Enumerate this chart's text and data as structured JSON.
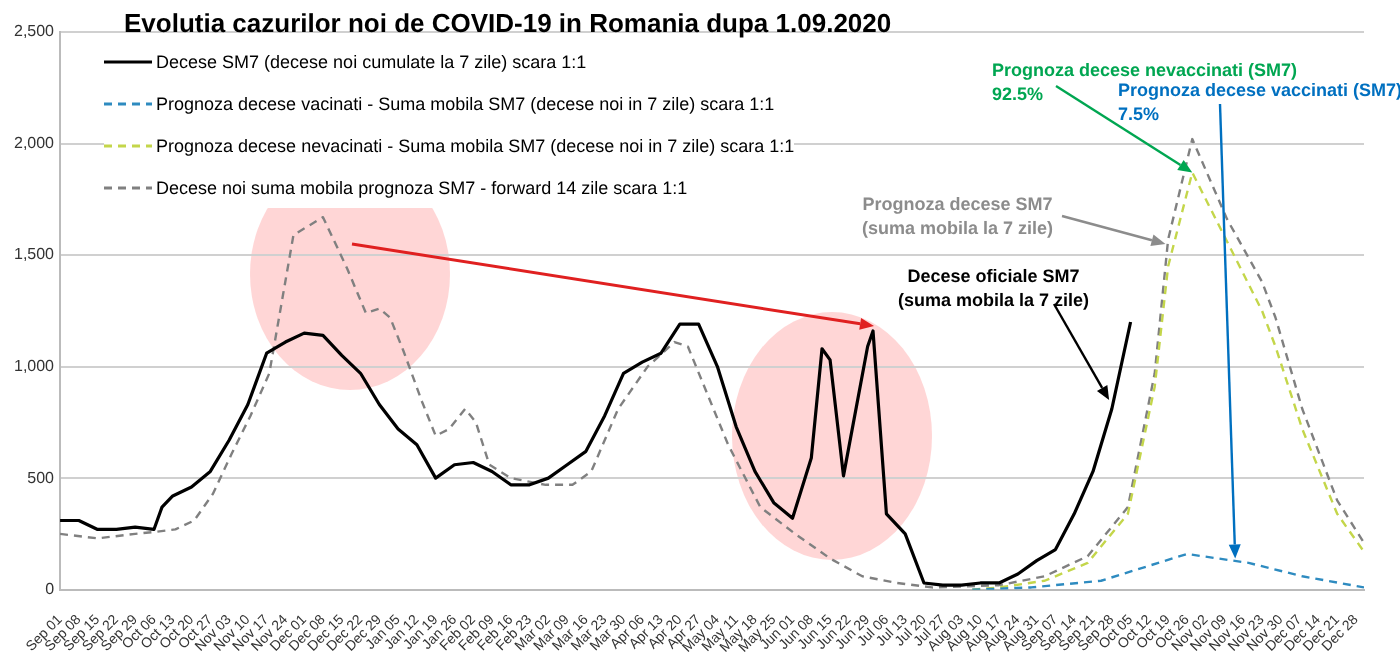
{
  "chart_data": {
    "type": "line",
    "title": "Evolutia cazurilor noi de COVID-19 in Romania dupa 1.09.2020",
    "legend": "top left",
    "grid": "y",
    "xlim": [
      "2020-09-01",
      "2021-12-31"
    ],
    "ylim": [
      0,
      2500
    ],
    "yticks": [
      {
        "value": 0,
        "label": "0"
      },
      {
        "value": 500,
        "label": "500"
      },
      {
        "value": 1000,
        "label": "1,000"
      },
      {
        "value": 1500,
        "label": "1,500"
      },
      {
        "value": 2000,
        "label": "2,000"
      },
      {
        "value": 2500,
        "label": "2,500"
      }
    ],
    "xticks": [
      {
        "value": "2020-09-01",
        "label": "Sep 01"
      },
      {
        "value": "2020-09-08",
        "label": "Sep 08"
      },
      {
        "value": "2020-09-15",
        "label": "Sep 15"
      },
      {
        "value": "2020-09-22",
        "label": "Sep 22"
      },
      {
        "value": "2020-09-29",
        "label": "Sep 29"
      },
      {
        "value": "2020-10-06",
        "label": "Oct 06"
      },
      {
        "value": "2020-10-13",
        "label": "Oct 13"
      },
      {
        "value": "2020-10-20",
        "label": "Oct 20"
      },
      {
        "value": "2020-10-27",
        "label": "Oct 27"
      },
      {
        "value": "2020-11-03",
        "label": "Nov 03"
      },
      {
        "value": "2020-11-10",
        "label": "Nov 10"
      },
      {
        "value": "2020-11-17",
        "label": "Nov 17"
      },
      {
        "value": "2020-11-24",
        "label": "Nov 24"
      },
      {
        "value": "2020-12-01",
        "label": "Dec 01"
      },
      {
        "value": "2020-12-08",
        "label": "Dec 08"
      },
      {
        "value": "2020-12-15",
        "label": "Dec 15"
      },
      {
        "value": "2020-12-22",
        "label": "Dec 22"
      },
      {
        "value": "2020-12-29",
        "label": "Dec 29"
      },
      {
        "value": "2021-01-05",
        "label": "Jan 05"
      },
      {
        "value": "2021-01-12",
        "label": "Jan 12"
      },
      {
        "value": "2021-01-19",
        "label": "Jan 19"
      },
      {
        "value": "2021-01-26",
        "label": "Jan 26"
      },
      {
        "value": "2021-02-02",
        "label": "Feb 02"
      },
      {
        "value": "2021-02-09",
        "label": "Feb 09"
      },
      {
        "value": "2021-02-16",
        "label": "Feb 16"
      },
      {
        "value": "2021-02-23",
        "label": "Feb 23"
      },
      {
        "value": "2021-03-02",
        "label": "Mar 02"
      },
      {
        "value": "2021-03-09",
        "label": "Mar 09"
      },
      {
        "value": "2021-03-16",
        "label": "Mar 16"
      },
      {
        "value": "2021-03-23",
        "label": "Mar 23"
      },
      {
        "value": "2021-03-30",
        "label": "Mar 30"
      },
      {
        "value": "2021-04-06",
        "label": "Apr 06"
      },
      {
        "value": "2021-04-13",
        "label": "Apr 13"
      },
      {
        "value": "2021-04-20",
        "label": "Apr 20"
      },
      {
        "value": "2021-04-27",
        "label": "Apr 27"
      },
      {
        "value": "2021-05-04",
        "label": "May 04"
      },
      {
        "value": "2021-05-11",
        "label": "May 11"
      },
      {
        "value": "2021-05-18",
        "label": "May 18"
      },
      {
        "value": "2021-05-25",
        "label": "May 25"
      },
      {
        "value": "2021-06-01",
        "label": "Jun 01"
      },
      {
        "value": "2021-06-08",
        "label": "Jun 08"
      },
      {
        "value": "2021-06-15",
        "label": "Jun 15"
      },
      {
        "value": "2021-06-22",
        "label": "Jun 22"
      },
      {
        "value": "2021-06-29",
        "label": "Jun 29"
      },
      {
        "value": "2021-07-06",
        "label": "Jul 06"
      },
      {
        "value": "2021-07-13",
        "label": "Jul 13"
      },
      {
        "value": "2021-07-20",
        "label": "Jul 20"
      },
      {
        "value": "2021-07-27",
        "label": "Jul 27"
      },
      {
        "value": "2021-08-03",
        "label": "Aug 03"
      },
      {
        "value": "2021-08-10",
        "label": "Aug 10"
      },
      {
        "value": "2021-08-17",
        "label": "Aug 17"
      },
      {
        "value": "2021-08-24",
        "label": "Aug 24"
      },
      {
        "value": "2021-08-31",
        "label": "Aug 31"
      },
      {
        "value": "2021-09-07",
        "label": "Sep 07"
      },
      {
        "value": "2021-09-14",
        "label": "Sep 14"
      },
      {
        "value": "2021-09-21",
        "label": "Sep 21"
      },
      {
        "value": "2021-09-28",
        "label": "Sep 28"
      },
      {
        "value": "2021-10-05",
        "label": "Oct 05"
      },
      {
        "value": "2021-10-12",
        "label": "Oct 12"
      },
      {
        "value": "2021-10-19",
        "label": "Oct 19"
      },
      {
        "value": "2021-10-26",
        "label": "Oct 26"
      },
      {
        "value": "2021-11-02",
        "label": "Nov 02"
      },
      {
        "value": "2021-11-09",
        "label": "Nov 09"
      },
      {
        "value": "2021-11-16",
        "label": "Nov 16"
      },
      {
        "value": "2021-11-23",
        "label": "Nov 23"
      },
      {
        "value": "2021-11-30",
        "label": "Nov 30"
      },
      {
        "value": "2021-12-07",
        "label": "Dec 07"
      },
      {
        "value": "2021-12-14",
        "label": "Dec 14"
      },
      {
        "value": "2021-12-21",
        "label": "Dec 21"
      },
      {
        "value": "2021-12-28",
        "label": "Dec 28"
      }
    ],
    "series": [
      {
        "name": "Decese SM7 (decese noi cumulate la 7 zile) scara 1:1",
        "color": "#000000",
        "line_style": "solid",
        "x": [
          "2020-09-01",
          "2020-09-08",
          "2020-09-15",
          "2020-09-22",
          "2020-09-29",
          "2020-10-06",
          "2020-10-09",
          "2020-10-13",
          "2020-10-20",
          "2020-10-27",
          "2020-11-03",
          "2020-11-10",
          "2020-11-17",
          "2020-11-24",
          "2020-12-01",
          "2020-12-08",
          "2020-12-15",
          "2020-12-22",
          "2020-12-29",
          "2021-01-05",
          "2021-01-12",
          "2021-01-19",
          "2021-01-26",
          "2021-02-02",
          "2021-02-09",
          "2021-02-16",
          "2021-02-23",
          "2021-03-02",
          "2021-03-09",
          "2021-03-16",
          "2021-03-23",
          "2021-03-30",
          "2021-04-06",
          "2021-04-13",
          "2021-04-20",
          "2021-04-27",
          "2021-05-04",
          "2021-05-11",
          "2021-05-18",
          "2021-05-25",
          "2021-06-01",
          "2021-06-08",
          "2021-06-12",
          "2021-06-15",
          "2021-06-20",
          "2021-06-29",
          "2021-07-01",
          "2021-07-06",
          "2021-07-13",
          "2021-07-20",
          "2021-07-27",
          "2021-08-03",
          "2021-08-10",
          "2021-08-17",
          "2021-08-24",
          "2021-08-31",
          "2021-09-07",
          "2021-09-14",
          "2021-09-21",
          "2021-09-28",
          "2021-10-05"
        ],
        "values": [
          310,
          310,
          270,
          270,
          280,
          270,
          370,
          420,
          460,
          530,
          670,
          830,
          1060,
          1110,
          1150,
          1140,
          1050,
          970,
          830,
          720,
          650,
          500,
          560,
          570,
          530,
          470,
          470,
          500,
          560,
          620,
          780,
          970,
          1020,
          1060,
          1190,
          1190,
          1000,
          730,
          530,
          390,
          320,
          590,
          1080,
          1030,
          510,
          1090,
          1160,
          340,
          250,
          30,
          20,
          20,
          30,
          30,
          70,
          130,
          180,
          340,
          530,
          810,
          1200
        ]
      },
      {
        "name": "Prognoza decese vacinati - Suma mobila SM7 (decese noi in 7 zile) scara 1:1",
        "color": "#2e8bc0",
        "line_style": "dashed",
        "x": [
          "2021-08-07",
          "2021-08-29",
          "2021-09-24",
          "2021-10-26",
          "2021-11-18",
          "2021-12-08",
          "2021-12-31"
        ],
        "values": [
          0,
          10,
          40,
          160,
          120,
          60,
          10
        ]
      },
      {
        "name": "Prognoza decese nevacinati - Suma mobila SM7 (decese noi in 7 zile) scara 1:1",
        "color": "#c4d64a",
        "line_style": "dashed",
        "x": [
          "2021-08-07",
          "2021-08-17",
          "2021-09-03",
          "2021-09-19",
          "2021-10-04",
          "2021-10-14",
          "2021-10-19",
          "2021-10-28",
          "2021-11-10",
          "2021-11-23",
          "2021-11-28",
          "2021-12-08",
          "2021-12-21",
          "2021-12-31"
        ],
        "values": [
          0,
          10,
          40,
          120,
          340,
          910,
          1450,
          1870,
          1560,
          1250,
          1090,
          720,
          340,
          170
        ]
      },
      {
        "name": "Decese noi suma mobila prognoza SM7 - forward 14 zile scara 1:1",
        "color": "#808080",
        "line_style": "dashed",
        "x": [
          "2020-09-01",
          "2020-09-15",
          "2020-09-29",
          "2020-10-07",
          "2020-10-14",
          "2020-10-21",
          "2020-10-28",
          "2020-11-04",
          "2020-11-11",
          "2020-11-18",
          "2020-11-27",
          "2020-12-08",
          "2020-12-17",
          "2020-12-24",
          "2020-12-29",
          "2021-01-02",
          "2021-01-07",
          "2021-01-14",
          "2021-01-19",
          "2021-01-24",
          "2021-01-30",
          "2021-02-03",
          "2021-02-08",
          "2021-02-16",
          "2021-03-01",
          "2021-03-11",
          "2021-03-18",
          "2021-03-28",
          "2021-04-08",
          "2021-04-18",
          "2021-04-23",
          "2021-05-08",
          "2021-05-20",
          "2021-06-02",
          "2021-06-15",
          "2021-06-27",
          "2021-07-10",
          "2021-07-23",
          "2021-08-17",
          "2021-09-03",
          "2021-09-19",
          "2021-10-04",
          "2021-10-14",
          "2021-10-19",
          "2021-10-28",
          "2021-11-10",
          "2021-11-23",
          "2021-11-28",
          "2021-12-08",
          "2021-12-21",
          "2021-12-31"
        ],
        "values": [
          250,
          230,
          250,
          260,
          270,
          310,
          430,
          610,
          780,
          970,
          1590,
          1670,
          1440,
          1240,
          1260,
          1220,
          1070,
          840,
          690,
          720,
          810,
          750,
          560,
          500,
          470,
          470,
          530,
          810,
          1000,
          1110,
          1090,
          650,
          370,
          250,
          140,
          60,
          30,
          10,
          20,
          60,
          150,
          370,
          970,
          1570,
          2020,
          1660,
          1380,
          1220,
          810,
          400,
          210
        ]
      }
    ],
    "annotations": [
      {
        "text": "Prognoza decese nevaccinati (SM7)\n92.5%",
        "x": "2021-10-28",
        "y": 1870
      },
      {
        "text": "Prognoza decese vaccinati (SM7)\n7.5%",
        "x": "2021-11-13",
        "y": 140
      },
      {
        "text": "Prognoza decese SM7\n(suma mobila la 7 zile)",
        "x": "2021-10-18",
        "y": 1550
      },
      {
        "text": "Decese oficiale SM7\n(suma mobila la 7 zile)",
        "x": "2021-09-27",
        "y": 850
      }
    ]
  }
}
